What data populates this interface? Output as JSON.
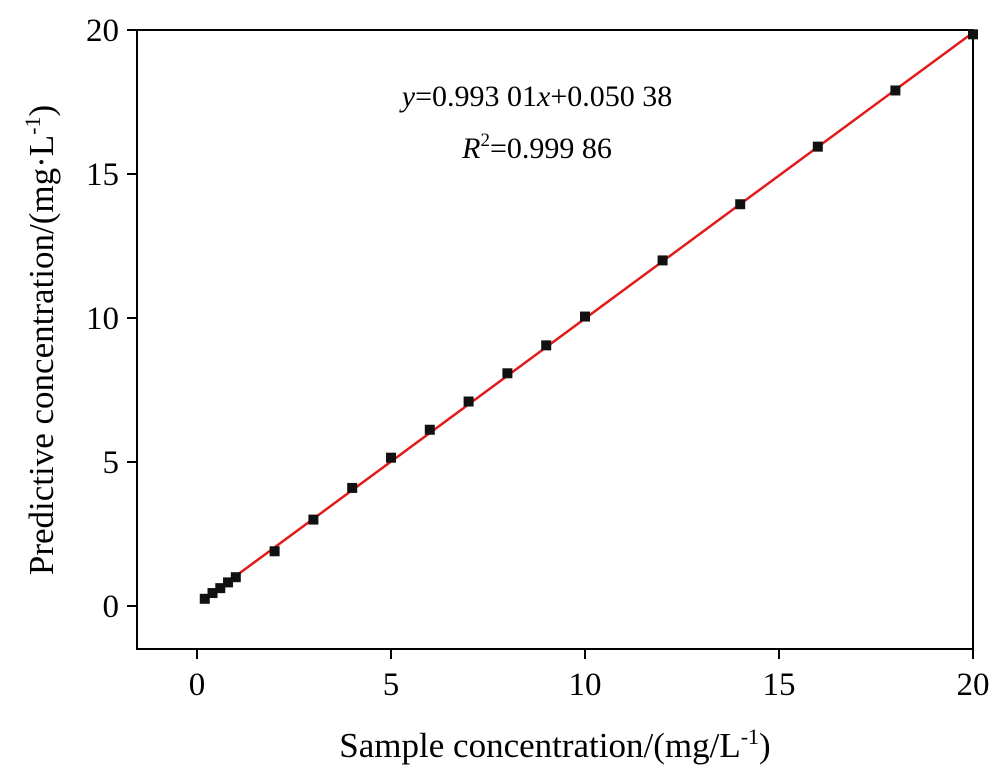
{
  "chart_data": {
    "type": "scatter",
    "title": "",
    "xlabel": "Sample concentration/(mg/L",
    "xlabel_sup": "-1",
    "xlabel_end": ")",
    "ylabel": "Predictive concentration/(mg·L",
    "ylabel_sup": "-1",
    "ylabel_end": ")",
    "xlim": [
      -1.5,
      20
    ],
    "ylim": [
      -1.5,
      20
    ],
    "xticks": [
      0,
      5,
      10,
      15,
      20
    ],
    "yticks": [
      0,
      5,
      10,
      15,
      20
    ],
    "grid": false,
    "series": [
      {
        "marker_color": "#111111",
        "x": [
          0.2,
          0.4,
          0.6,
          0.8,
          1,
          2,
          3,
          4,
          5,
          6,
          7,
          8,
          9,
          10,
          12,
          14,
          16,
          18,
          20
        ],
        "y": [
          0.25,
          0.45,
          0.62,
          0.82,
          1.0,
          1.9,
          3.0,
          4.1,
          5.15,
          6.12,
          7.1,
          8.08,
          9.05,
          10.05,
          12.0,
          13.95,
          15.95,
          17.9,
          19.85
        ]
      }
    ],
    "fit_line": {
      "slope": 0.99301,
      "intercept": 0.05038,
      "x_range": [
        0.2,
        20
      ],
      "color": "#e31a1c"
    },
    "annotations": {
      "equation": {
        "y_var": "y",
        "eq1": "=0.993 01",
        "x_var": "x",
        "eq2": "+0.050 38"
      },
      "r2": {
        "r_var": "R",
        "sup": "2",
        "value": "=0.999 86"
      }
    }
  }
}
